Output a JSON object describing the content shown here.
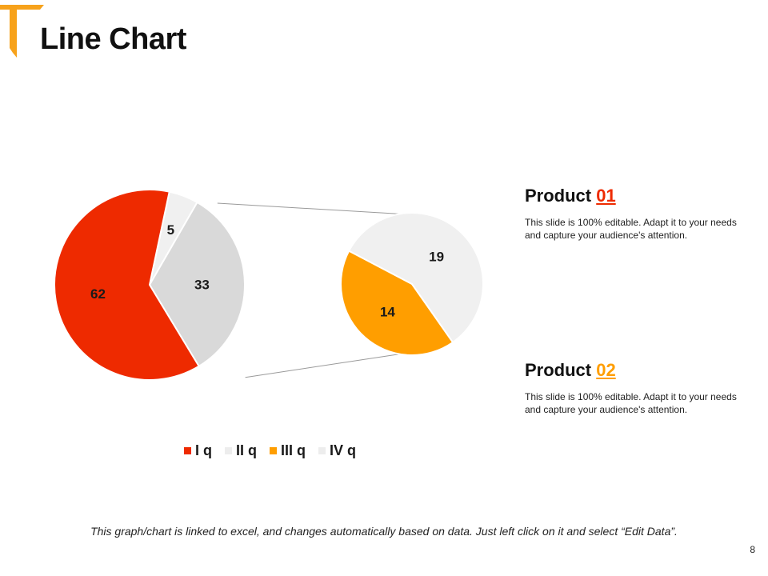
{
  "slide": {
    "title": "Line Chart",
    "page_number": "8",
    "footnote": "This graph/chart is linked to excel, and changes automatically based on data. Just left click on it and select “Edit Data”.",
    "accent_color": "#F7A21B"
  },
  "chart_data": {
    "type": "pie",
    "subtype": "pie-of-pie",
    "categories": [
      "I q",
      "II q",
      "III q",
      "IV q"
    ],
    "values": [
      62,
      33,
      14,
      5,
      19
    ],
    "labels": [
      "62",
      "33",
      "14",
      "5",
      "19"
    ],
    "slices": [
      {
        "category": "I q",
        "value": 62,
        "pie": "main",
        "color": "#EE2A00"
      },
      {
        "category": "II q",
        "value": 33,
        "pie": "main",
        "color": "#D9D9D9"
      },
      {
        "category": "IV q",
        "value": 5,
        "pie": "main",
        "color": "#F0F0F0"
      },
      {
        "category": "III q",
        "value": 14,
        "pie": "secondary",
        "color": "#FF9E00"
      },
      {
        "category": "IV q",
        "value": 19,
        "pie": "secondary",
        "color": "#F0F0F0"
      }
    ],
    "legend": {
      "position": "bottom",
      "items": [
        {
          "label": "I q",
          "color": "#EE2A00"
        },
        {
          "label": "II q",
          "color": "#EDEDED"
        },
        {
          "label": "III q",
          "color": "#FF9E00"
        },
        {
          "label": "IV q",
          "color": "#EDEDED"
        }
      ]
    }
  },
  "products": [
    {
      "label": "Product ",
      "number": "01",
      "number_color": "#EE2A00",
      "description": "This slide is 100% editable. Adapt it to your needs and capture your audience's attention."
    },
    {
      "label": "Product ",
      "number": "02",
      "number_color": "#FF9E00",
      "description": "This slide is 100% editable. Adapt it to your needs and capture your audience's attention."
    }
  ]
}
